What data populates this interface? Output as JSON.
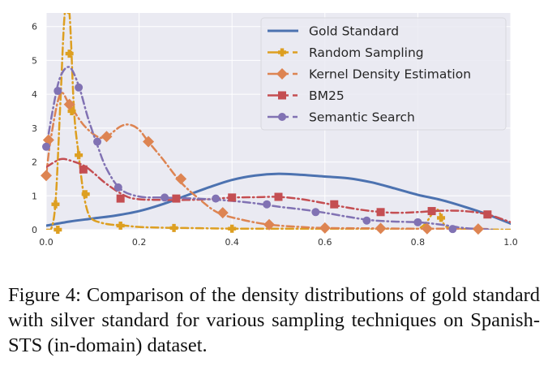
{
  "chart_data": {
    "type": "line",
    "title": "",
    "xlabel": "",
    "ylabel": "",
    "xlim": [
      0.0,
      1.0
    ],
    "ylim": [
      0,
      6.4
    ],
    "grid": true,
    "legend_position": "top-right",
    "x_ticks": [
      "0.0",
      "0.2",
      "0.4",
      "0.6",
      "0.8",
      "1.0"
    ],
    "x_tick_values": [
      0.0,
      0.2,
      0.4,
      0.6,
      0.8,
      1.0
    ],
    "y_ticks": [
      "0",
      "1",
      "2",
      "3",
      "4",
      "5",
      "6"
    ],
    "y_tick_values": [
      0,
      1,
      2,
      3,
      4,
      5,
      6
    ],
    "series": [
      {
        "name": "Gold Standard",
        "color": "#4c72b0",
        "style": "solid",
        "marker": "none",
        "x": [
          0.0,
          0.05,
          0.1,
          0.15,
          0.2,
          0.25,
          0.3,
          0.35,
          0.4,
          0.45,
          0.5,
          0.55,
          0.6,
          0.65,
          0.7,
          0.75,
          0.8,
          0.85,
          0.9,
          0.95,
          1.0
        ],
        "y": [
          0.12,
          0.24,
          0.33,
          0.42,
          0.55,
          0.75,
          1.0,
          1.25,
          1.47,
          1.6,
          1.65,
          1.62,
          1.57,
          1.52,
          1.4,
          1.22,
          1.03,
          0.88,
          0.68,
          0.45,
          0.18
        ],
        "marker_x": [],
        "marker_y": []
      },
      {
        "name": "Random Sampling",
        "color": "#dd9f21",
        "style": "dashdot",
        "marker": "plus-filled",
        "x": [
          0.0,
          0.01,
          0.02,
          0.03,
          0.04,
          0.05,
          0.06,
          0.07,
          0.08,
          0.09,
          0.1,
          0.12,
          0.14,
          0.17,
          0.2,
          0.25,
          0.3,
          0.35,
          0.4,
          0.45,
          0.5,
          0.6,
          0.7,
          0.8,
          0.84,
          0.86,
          0.9,
          1.0
        ],
        "y": [
          0.0,
          0.0,
          0.8,
          3.6,
          6.4,
          6.4,
          3.5,
          2.2,
          1.1,
          0.5,
          0.3,
          0.2,
          0.15,
          0.12,
          0.08,
          0.06,
          0.05,
          0.04,
          0.03,
          0.03,
          0.03,
          0.02,
          0.02,
          0.03,
          0.6,
          0.1,
          0.02,
          0.0
        ],
        "marker_x": [
          0.02,
          0.025,
          0.05,
          0.055,
          0.07,
          0.085,
          0.16,
          0.275,
          0.4,
          0.85
        ],
        "marker_y": [
          0.75,
          0.0,
          5.2,
          3.5,
          2.2,
          1.05,
          0.12,
          0.05,
          0.03,
          0.35
        ]
      },
      {
        "name": "Kernel Density Estimation",
        "color": "#dd8452",
        "style": "dashdot",
        "marker": "diamond",
        "x": [
          0.0,
          0.01,
          0.03,
          0.05,
          0.08,
          0.11,
          0.13,
          0.16,
          0.18,
          0.2,
          0.22,
          0.25,
          0.29,
          0.33,
          0.37,
          0.42,
          0.48,
          0.55,
          0.6,
          0.7,
          0.8,
          0.9,
          0.95
        ],
        "y": [
          1.6,
          2.7,
          4.0,
          3.7,
          3.1,
          2.75,
          2.75,
          3.05,
          3.1,
          2.95,
          2.6,
          2.1,
          1.4,
          0.9,
          0.5,
          0.3,
          0.15,
          0.08,
          0.05,
          0.04,
          0.03,
          0.03,
          0.02
        ],
        "marker_x": [
          0.0,
          0.005,
          0.05,
          0.13,
          0.22,
          0.29,
          0.38,
          0.48,
          0.6,
          0.72,
          0.82,
          0.93
        ],
        "marker_y": [
          1.6,
          2.65,
          3.7,
          2.75,
          2.6,
          1.5,
          0.5,
          0.15,
          0.05,
          0.04,
          0.03,
          0.02
        ],
        "note": "first two marker samples at x≈0 edge"
      },
      {
        "name": "BM25",
        "color": "#c44e52",
        "style": "dashdot",
        "marker": "square",
        "x": [
          0.0,
          0.03,
          0.05,
          0.08,
          0.1,
          0.13,
          0.17,
          0.2,
          0.25,
          0.3,
          0.35,
          0.4,
          0.45,
          0.5,
          0.55,
          0.6,
          0.65,
          0.7,
          0.75,
          0.8,
          0.85,
          0.9,
          0.95,
          1.0
        ],
        "y": [
          1.85,
          2.08,
          2.05,
          1.9,
          1.7,
          1.35,
          1.0,
          0.9,
          0.88,
          0.88,
          0.9,
          0.95,
          0.96,
          0.97,
          0.9,
          0.78,
          0.65,
          0.55,
          0.5,
          0.52,
          0.56,
          0.55,
          0.45,
          0.22
        ],
        "marker_x": [
          0.08,
          0.16,
          0.28,
          0.4,
          0.5,
          0.62,
          0.72,
          0.83,
          0.95
        ],
        "marker_y": [
          1.78,
          0.92,
          0.92,
          0.95,
          0.97,
          0.75,
          0.52,
          0.55,
          0.45
        ]
      },
      {
        "name": "Semantic Search",
        "color": "#8172b3",
        "style": "dashdot",
        "marker": "circle",
        "x": [
          0.0,
          0.015,
          0.03,
          0.05,
          0.07,
          0.09,
          0.11,
          0.13,
          0.16,
          0.2,
          0.25,
          0.3,
          0.35,
          0.4,
          0.45,
          0.5,
          0.55,
          0.6,
          0.65,
          0.7,
          0.75,
          0.8,
          0.85,
          0.9,
          0.96
        ],
        "y": [
          2.4,
          3.6,
          4.5,
          4.8,
          4.25,
          3.3,
          2.5,
          1.8,
          1.2,
          0.98,
          0.95,
          0.93,
          0.9,
          0.85,
          0.78,
          0.68,
          0.6,
          0.5,
          0.38,
          0.28,
          0.24,
          0.22,
          0.15,
          0.05,
          0.0
        ],
        "marker_x": [
          0.0,
          0.025,
          0.07,
          0.11,
          0.155,
          0.255,
          0.365,
          0.475,
          0.58,
          0.69,
          0.8,
          0.875
        ],
        "marker_y": [
          2.45,
          4.1,
          4.2,
          2.6,
          1.25,
          0.95,
          0.92,
          0.75,
          0.52,
          0.27,
          0.22,
          0.02
        ]
      }
    ]
  },
  "caption": "Figure 4:  Comparison of the density distributions of gold standard with silver standard for various sampling techniques on Spanish-STS (in-domain) dataset."
}
